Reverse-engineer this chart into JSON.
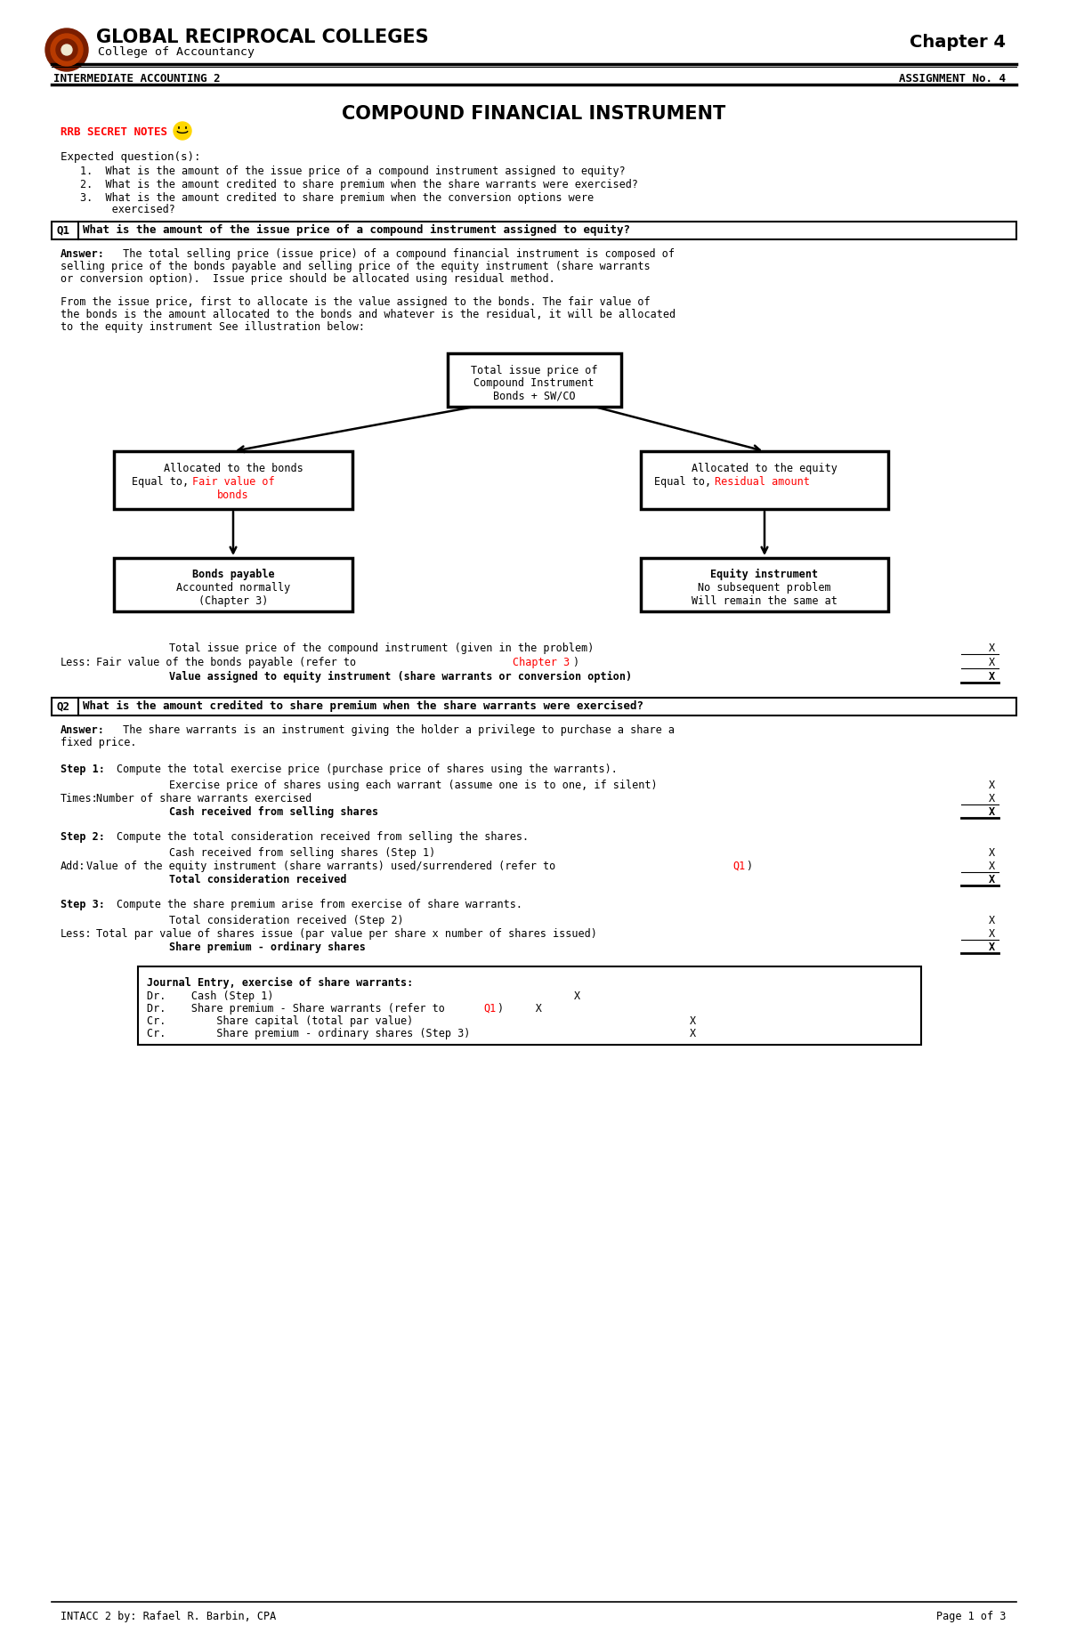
{
  "page_bg": "#ffffff",
  "header": {
    "school_name": "GLOBAL RECIPROCAL COLLEGES",
    "department": "College of Accountancy",
    "chapter": "Chapter 4",
    "course": "INTERMEDIATE ACCOUNTING 2",
    "assignment": "ASSIGNMENT No. 4"
  },
  "main_title": "COMPOUND FINANCIAL INSTRUMENT",
  "rrb_label": "RRB SECRET NOTES",
  "expected_questions": [
    "What is the amount of the issue price of a compound instrument assigned to equity?",
    "What is the amount credited to share premium when the share warrants were exercised?",
    "What is the amount credited to share premium when the conversion options were",
    "exercised?"
  ],
  "q1_text": "What is the amount of the issue price of a compound instrument assigned to equity?",
  "answer1_lines": [
    "Answer: The total selling price (issue price) of a compound financial instrument is composed of",
    "selling price of the bonds payable and selling price of the equity instrument (share warrants",
    "or conversion option).  Issue price should be allocated using residual method."
  ],
  "answer1_para2_lines": [
    "From the issue price, first to allocate is the value assigned to the bonds. The fair value of",
    "the bonds is the amount allocated to the bonds and whatever is the residual, it will be allocated",
    "to the equity instrument See illustration below:"
  ],
  "q2_text": "What is the amount credited to share premium when the share warrants were exercised?",
  "answer2_lines": [
    "Answer: The share warrants is an instrument giving the holder a privilege to purchase a share a",
    "fixed price."
  ],
  "footer": "INTACC 2 by: Rafael R. Barbin, CPA",
  "footer_page": "Page 1 of 3"
}
